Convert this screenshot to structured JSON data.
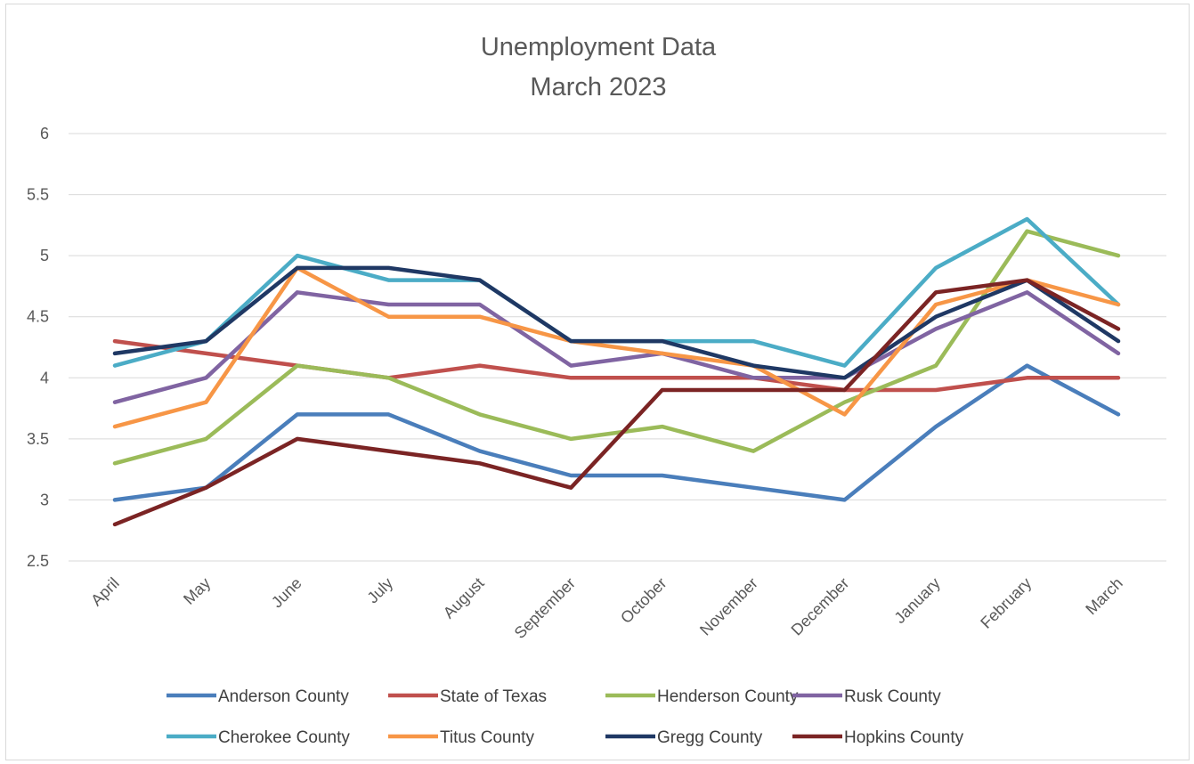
{
  "chart_data": {
    "type": "line",
    "title": "Unemployment Data",
    "subtitle": "March 2023",
    "xlabel": "",
    "ylabel": "",
    "categories": [
      "April",
      "May",
      "June",
      "July",
      "August",
      "September",
      "October",
      "November",
      "December",
      "January",
      "February",
      "March"
    ],
    "ylim": [
      2.5,
      6
    ],
    "yticks": [
      "2.5",
      "3",
      "3.5",
      "4",
      "4.5",
      "5",
      "5.5",
      "6"
    ],
    "grid": true,
    "legend_position": "bottom",
    "series": [
      {
        "name": "Anderson County",
        "color": "#4a7ebb",
        "values": [
          3.0,
          3.1,
          3.7,
          3.7,
          3.4,
          3.2,
          3.2,
          3.1,
          3.0,
          3.6,
          4.1,
          3.7
        ]
      },
      {
        "name": "State of Texas",
        "color": "#c0504d",
        "values": [
          4.3,
          4.2,
          4.1,
          4.0,
          4.1,
          4.0,
          4.0,
          4.0,
          3.9,
          3.9,
          4.0,
          4.0
        ]
      },
      {
        "name": "Henderson County",
        "color": "#9bbb59",
        "values": [
          3.3,
          3.5,
          4.1,
          4.0,
          3.7,
          3.5,
          3.6,
          3.4,
          3.8,
          4.1,
          5.2,
          5.0
        ]
      },
      {
        "name": "Rusk County",
        "color": "#8064a2",
        "values": [
          3.8,
          4.0,
          4.7,
          4.6,
          4.6,
          4.1,
          4.2,
          4.0,
          4.0,
          4.4,
          4.7,
          4.2
        ]
      },
      {
        "name": "Cherokee County",
        "color": "#4bacc6",
        "values": [
          4.1,
          4.3,
          5.0,
          4.8,
          4.8,
          4.3,
          4.3,
          4.3,
          4.1,
          4.9,
          5.3,
          4.6
        ]
      },
      {
        "name": "Titus County",
        "color": "#f79646",
        "values": [
          3.6,
          3.8,
          4.9,
          4.5,
          4.5,
          4.3,
          4.2,
          4.1,
          3.7,
          4.6,
          4.8,
          4.6
        ]
      },
      {
        "name": "Gregg County",
        "color": "#1f3864",
        "values": [
          4.2,
          4.3,
          4.9,
          4.9,
          4.8,
          4.3,
          4.3,
          4.1,
          4.0,
          4.5,
          4.8,
          4.3
        ]
      },
      {
        "name": "Hopkins County",
        "color": "#7b2424",
        "values": [
          2.8,
          3.1,
          3.5,
          3.4,
          3.3,
          3.1,
          3.9,
          3.9,
          3.9,
          4.7,
          4.8,
          4.4
        ]
      }
    ]
  }
}
